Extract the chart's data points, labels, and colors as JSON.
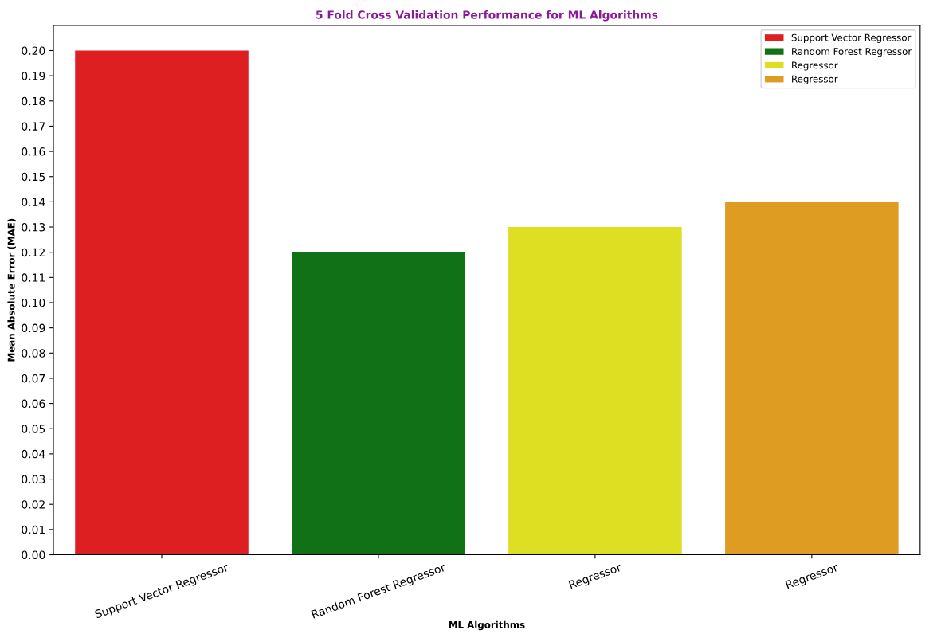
{
  "chart_data": {
    "type": "bar",
    "title": "5 Fold Cross Validation Performance for ML Algorithms",
    "xlabel": "ML Algorithms",
    "ylabel": "Mean Absolute Error (MAE)",
    "categories": [
      "Support Vector Regressor",
      "Random Forest Regressor",
      "Regressor",
      "Regressor"
    ],
    "series": [
      {
        "name": "Support Vector Regressor",
        "color": "#dd1f22",
        "values": [
          0.2,
          null,
          null,
          null
        ]
      },
      {
        "name": "Random Forest Regressor",
        "color": "#117117",
        "values": [
          null,
          0.12,
          null,
          null
        ]
      },
      {
        "name": "Regressor",
        "color": "#dede22",
        "values": [
          null,
          null,
          0.13,
          null
        ]
      },
      {
        "name": "Regressor",
        "color": "#df9c22",
        "values": [
          null,
          null,
          null,
          0.14
        ]
      }
    ],
    "ylim": [
      0,
      0.21
    ],
    "yticks": [
      {
        "value": 0,
        "label": "0.00"
      },
      {
        "value": 0.01,
        "label": "0.01"
      },
      {
        "value": 0.02,
        "label": "0.02"
      },
      {
        "value": 0.03,
        "label": "0.03"
      },
      {
        "value": 0.04,
        "label": "0.04"
      },
      {
        "value": 0.05,
        "label": "0.05"
      },
      {
        "value": 0.06,
        "label": "0.06"
      },
      {
        "value": 0.07,
        "label": "0.07"
      },
      {
        "value": 0.08,
        "label": "0.08"
      },
      {
        "value": 0.09,
        "label": "0.09"
      },
      {
        "value": 0.1,
        "label": "0.10"
      },
      {
        "value": 0.11,
        "label": "0.11"
      },
      {
        "value": 0.12,
        "label": "0.12"
      },
      {
        "value": 0.13,
        "label": "0.13"
      },
      {
        "value": 0.14,
        "label": "0.14"
      },
      {
        "value": 0.15,
        "label": "0.15"
      },
      {
        "value": 0.16,
        "label": "0.16"
      },
      {
        "value": 0.17,
        "label": "0.17"
      },
      {
        "value": 0.18,
        "label": "0.18"
      },
      {
        "value": 0.19,
        "label": "0.19"
      },
      {
        "value": 0.2,
        "label": "0.20"
      }
    ],
    "legend": "top right"
  }
}
